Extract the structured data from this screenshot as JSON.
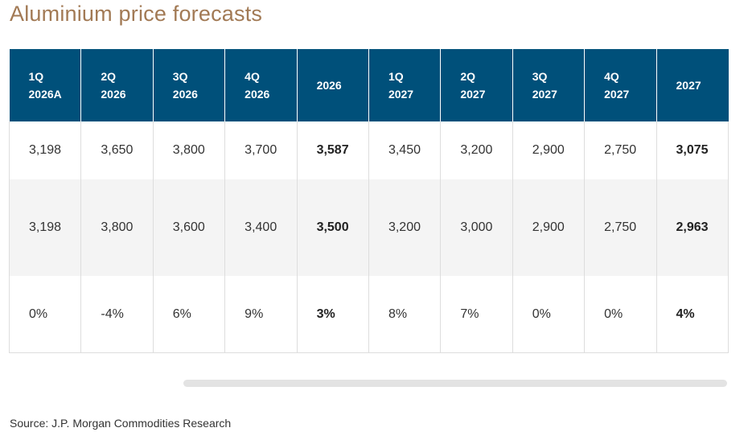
{
  "title": "Aluminium price forecasts",
  "source": "Source: J.P. Morgan Commodities Research",
  "colors": {
    "header_bg": "#00507a",
    "title": "#a27a55",
    "alt_row": "#f4f4f4"
  },
  "chart_data": {
    "type": "table",
    "title": "Aluminium price forecasts",
    "columns": [
      {
        "line1": "1Q",
        "line2": "2026A"
      },
      {
        "line1": "2Q",
        "line2": "2026"
      },
      {
        "line1": "3Q",
        "line2": "2026"
      },
      {
        "line1": "4Q",
        "line2": "2026"
      },
      {
        "line1": "2026",
        "line2": ""
      },
      {
        "line1": "1Q",
        "line2": "2027"
      },
      {
        "line1": "2Q",
        "line2": "2027"
      },
      {
        "line1": "3Q",
        "line2": "2027"
      },
      {
        "line1": "4Q",
        "line2": "2027"
      },
      {
        "line1": "2027",
        "line2": ""
      }
    ],
    "rows": [
      [
        "3,198",
        "3,650",
        "3,800",
        "3,700",
        "3,587",
        "3,450",
        "3,200",
        "2,900",
        "2,750",
        "3,075"
      ],
      [
        "3,198",
        "3,800",
        "3,600",
        "3,400",
        "3,500",
        "3,200",
        "3,000",
        "2,900",
        "2,750",
        "2,963"
      ],
      [
        "0%",
        "-4%",
        "6%",
        "9%",
        "3%",
        "8%",
        "7%",
        "0%",
        "0%",
        "4%"
      ]
    ],
    "bold_columns": [
      4,
      9
    ]
  }
}
